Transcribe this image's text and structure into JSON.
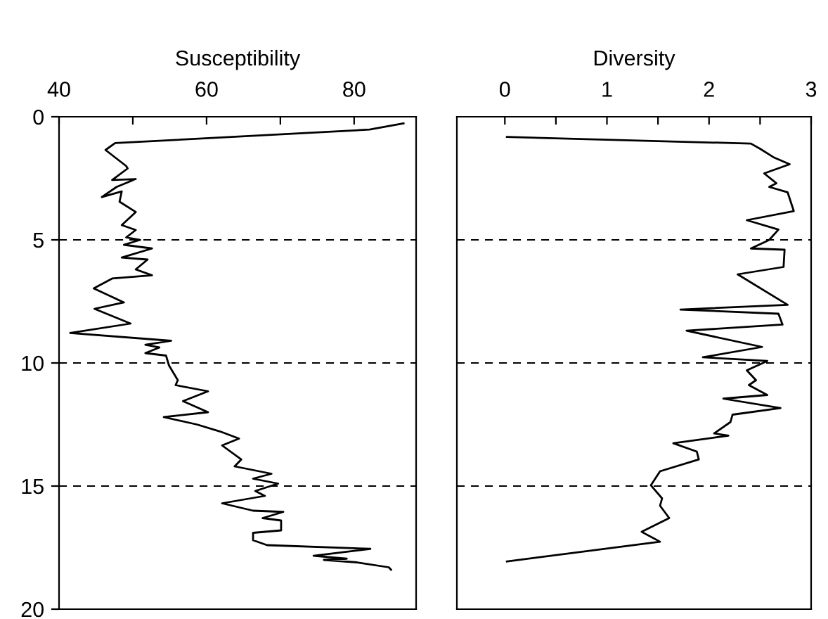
{
  "chart_data": [
    {
      "type": "line",
      "xlabel": "Susceptibility",
      "xlim": [
        40,
        88.4
      ],
      "xticks": [
        40,
        {
          "value": 50,
          "label": null
        },
        60,
        {
          "value": 70,
          "label": null
        },
        80
      ],
      "ylim": [
        20,
        0
      ],
      "yticks": [
        0,
        5,
        10,
        15,
        20
      ],
      "grid": false,
      "legend": false,
      "line_style": "solid",
      "marker": "none",
      "ref_lines": [
        {
          "axis": "y",
          "value": 5,
          "color": "#000000",
          "line_style": "dashed"
        },
        {
          "axis": "y",
          "value": 10,
          "color": "#000000",
          "line_style": "dashed"
        },
        {
          "axis": "y",
          "value": 15,
          "color": "#000000",
          "line_style": "dashed"
        }
      ],
      "series": [
        {
          "color": "#000000",
          "x": [
            86.7,
            82.1,
            47.6,
            46.3,
            49.1,
            49.3,
            47.2,
            50.4,
            47.8,
            45.8,
            48.5,
            48.2,
            50.4,
            48.5,
            50.4,
            49.1,
            51,
            48.8,
            52.6,
            48.5,
            52,
            50.4,
            52.6,
            47.2,
            44.7,
            48.8,
            44.8,
            49.7,
            41.5,
            55.2,
            51.7,
            53.6,
            51.7,
            54.5,
            54.9,
            56.1,
            55.8,
            60.2,
            56.8,
            60.2,
            54.2,
            58.7,
            61.8,
            64.4,
            62.1,
            64.7,
            63.8,
            68.8,
            66.3,
            69.7,
            66.6,
            67.9,
            62.1,
            66.3,
            70.4,
            67.6,
            70.1,
            70.1,
            66.3,
            66.3,
            68.2,
            82.2,
            74.5,
            79,
            75.9,
            80.4,
            84.7,
            85
          ],
          "values": [
            0.27,
            0.52,
            1.07,
            1.35,
            2.0,
            2.1,
            2.57,
            2.53,
            2.85,
            3.26,
            3.03,
            3.45,
            3.87,
            4.4,
            4.6,
            4.9,
            5.0,
            5.2,
            5.35,
            5.72,
            5.8,
            6.2,
            6.44,
            6.57,
            6.97,
            7.54,
            7.8,
            8.4,
            8.78,
            9.1,
            9.26,
            9.37,
            9.6,
            9.7,
            10.1,
            10.7,
            10.9,
            11.15,
            11.55,
            12.0,
            12.2,
            12.5,
            12.78,
            13.07,
            13.35,
            13.92,
            14.2,
            14.5,
            14.7,
            14.9,
            15.2,
            15.4,
            15.7,
            16.0,
            16.05,
            16.3,
            16.4,
            16.8,
            16.9,
            17.2,
            17.4,
            17.55,
            17.83,
            17.95,
            18.0,
            18.1,
            18.3,
            18.4
          ]
        }
      ]
    },
    {
      "type": "line",
      "xlabel": "Diversity",
      "xlim": [
        -0.47,
        3
      ],
      "xticks": [
        0,
        {
          "value": 0.5,
          "label": null
        },
        1,
        {
          "value": 1.5,
          "label": null
        },
        2,
        {
          "value": 2.5,
          "label": null
        },
        3
      ],
      "ylim": [
        20,
        0
      ],
      "yticks": [
        0,
        5,
        10,
        15,
        20
      ],
      "tick_labels": "x",
      "grid": false,
      "legend": false,
      "line_style": "solid",
      "marker": "none",
      "ref_lines": [
        {
          "axis": "y",
          "value": 5,
          "color": "#000000",
          "line_style": "dashed"
        },
        {
          "axis": "y",
          "value": 10,
          "color": "#000000",
          "line_style": "dashed"
        },
        {
          "axis": "y",
          "value": 15,
          "color": "#000000",
          "line_style": "dashed"
        }
      ],
      "series": [
        {
          "color": "#000000",
          "x": [
            0.02,
            2.41,
            2.5,
            2.63,
            2.79,
            2.54,
            2.66,
            2.59,
            2.77,
            2.83,
            2.37,
            2.68,
            2.59,
            2.54,
            2.41,
            2.74,
            2.73,
            2.28,
            2.77,
            1.72,
            2.68,
            2.72,
            1.78,
            2.52,
            1.94,
            2.57,
            2.37,
            2.46,
            2.39,
            2.57,
            2.14,
            2.7,
            2.23,
            2.21,
            2.05,
            2.19,
            1.65,
            1.88,
            1.9,
            1.52,
            1.43,
            1.54,
            1.52,
            1.61,
            1.34,
            1.52,
            0.02
          ],
          "values": [
            0.82,
            1.09,
            1.3,
            1.64,
            1.93,
            2.3,
            2.7,
            2.85,
            3.07,
            3.83,
            4.2,
            4.58,
            5.0,
            5.1,
            5.35,
            5.4,
            6.1,
            6.4,
            7.64,
            7.83,
            8.0,
            8.44,
            8.69,
            9.35,
            9.77,
            9.92,
            10.3,
            10.7,
            10.9,
            11.3,
            11.45,
            11.83,
            12.1,
            12.4,
            12.86,
            12.95,
            13.26,
            13.6,
            13.92,
            14.4,
            14.97,
            15.5,
            15.8,
            16.3,
            16.86,
            17.26,
            18.06
          ]
        }
      ]
    }
  ]
}
